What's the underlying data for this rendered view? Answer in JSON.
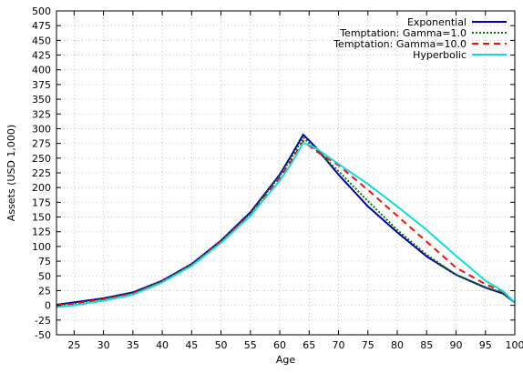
{
  "chart_data": {
    "type": "line",
    "title": "",
    "xlabel": "Age",
    "ylabel": "Assets (USD 1,000)",
    "xlim": [
      22,
      100
    ],
    "ylim": [
      -50,
      500
    ],
    "xticks": [
      25,
      30,
      35,
      40,
      45,
      50,
      55,
      60,
      65,
      70,
      75,
      80,
      85,
      90,
      95,
      100
    ],
    "yticks": [
      -50,
      -25,
      0,
      25,
      50,
      75,
      100,
      125,
      150,
      175,
      200,
      225,
      250,
      275,
      300,
      325,
      350,
      375,
      400,
      425,
      450,
      475,
      500
    ],
    "grid": true,
    "grid_style": "dotted",
    "legend_position": "top-right",
    "series": [
      {
        "name": "Exponential",
        "color": "#0000aa",
        "dash": "solid",
        "x": [
          22,
          25,
          30,
          35,
          40,
          45,
          50,
          55,
          60,
          62,
          64,
          66,
          70,
          75,
          80,
          85,
          90,
          95,
          98,
          100
        ],
        "y": [
          1,
          5,
          12,
          22,
          42,
          70,
          110,
          158,
          222,
          255,
          290,
          270,
          222,
          168,
          124,
          83,
          52,
          30,
          20,
          5
        ]
      },
      {
        "name": "Temptation: Gamma=1.0",
        "color": "#007700",
        "dash": "dotted",
        "x": [
          22,
          25,
          30,
          35,
          40,
          45,
          50,
          55,
          60,
          62,
          64,
          66,
          70,
          75,
          80,
          85,
          90,
          95,
          98,
          100
        ],
        "y": [
          0,
          3,
          11,
          21,
          41,
          69,
          109,
          156,
          220,
          250,
          285,
          266,
          228,
          177,
          128,
          86,
          52,
          31,
          21,
          5
        ]
      },
      {
        "name": "Temptation: Gamma=10.0",
        "color": "#ee1111",
        "dash": "dashed",
        "x": [
          22,
          25,
          30,
          35,
          40,
          45,
          50,
          55,
          60,
          62,
          64,
          66,
          70,
          75,
          80,
          85,
          90,
          95,
          98,
          100
        ],
        "y": [
          0,
          3,
          10,
          20,
          40,
          68,
          108,
          154,
          216,
          246,
          279,
          263,
          238,
          196,
          152,
          108,
          64,
          36,
          23,
          5
        ]
      },
      {
        "name": "Hyperbolic",
        "color": "#11dddd",
        "dash": "solid",
        "x": [
          22,
          25,
          30,
          35,
          40,
          45,
          50,
          55,
          60,
          62,
          64,
          66,
          70,
          75,
          80,
          85,
          90,
          95,
          98,
          100
        ],
        "y": [
          -3,
          0,
          8,
          18,
          39,
          67,
          106,
          152,
          212,
          241,
          276,
          268,
          240,
          206,
          168,
          128,
          84,
          42,
          24,
          5
        ]
      }
    ]
  }
}
